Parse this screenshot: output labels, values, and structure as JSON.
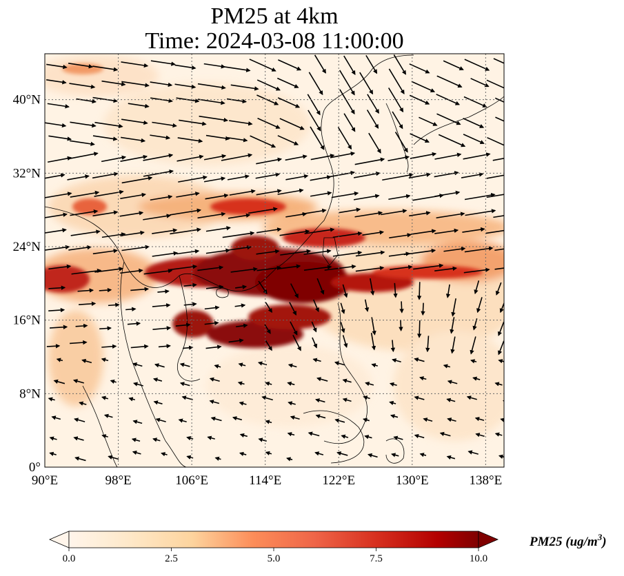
{
  "title": {
    "line1": "PM25 at 4km",
    "line2": "Time: 2024-03-08 11:00:00"
  },
  "map": {
    "lon_range": [
      90,
      140
    ],
    "lat_range": [
      0,
      45
    ],
    "lon_ticks": [
      "90°E",
      "98°E",
      "106°E",
      "114°E",
      "122°E",
      "130°E",
      "138°E"
    ],
    "lat_ticks": [
      "0°",
      "8°N",
      "16°N",
      "24°N",
      "32°N",
      "40°N"
    ],
    "gridlines": true,
    "field": "PM2.5 concentration with wind vectors",
    "colormap": "OrRd",
    "colors": {
      "background": "#fff5eb",
      "low": "#fde6cc",
      "mid": "#f5a45e",
      "high": "#d7301f",
      "max": "#7f0000"
    }
  },
  "colorbar": {
    "ticks": [
      "0.0",
      "2.5",
      "5.0",
      "7.5",
      "10.0"
    ],
    "range": [
      0,
      10
    ],
    "extend": "both",
    "label_main": "PM25 (ug/m",
    "label_sup": "3",
    "label_close": ")"
  }
}
